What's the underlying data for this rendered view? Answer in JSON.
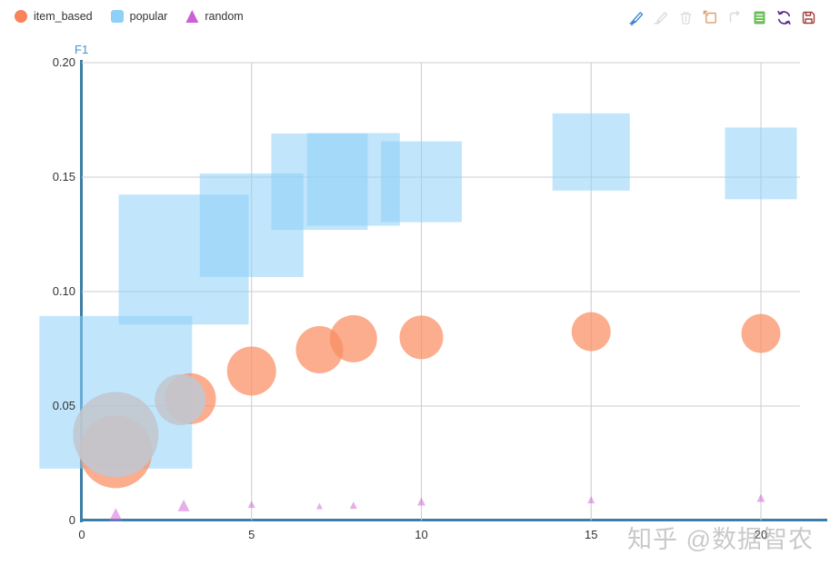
{
  "legend": {
    "items": [
      {
        "label": "item_based",
        "shape": "circle",
        "color": "#f8835a"
      },
      {
        "label": "popular",
        "shape": "square",
        "color": "#8ed0f8"
      },
      {
        "label": "random",
        "shape": "triangle",
        "color": "#cd5fd4"
      }
    ]
  },
  "toolbar": {
    "icons": [
      {
        "name": "brush-add-icon",
        "color": "#2f7fd1"
      },
      {
        "name": "brush-remove-icon",
        "color": "#d9d9d9"
      },
      {
        "name": "brush-clear-icon",
        "color": "#dcdcdc"
      },
      {
        "name": "zoom-select-icon",
        "color": "#dd9e6e"
      },
      {
        "name": "zoom-back-icon",
        "color": "#d9d9d9"
      },
      {
        "name": "data-view-icon",
        "color": "#6bbf59"
      },
      {
        "name": "restore-icon",
        "color": "#552d90"
      },
      {
        "name": "save-image-icon",
        "color": "#a03c3c"
      }
    ]
  },
  "axes": {
    "y_name": "F1",
    "y_ticks": [
      "0.20",
      "0.15",
      "0.10",
      "0.05",
      "0"
    ],
    "x_ticks": [
      "0",
      "5",
      "10",
      "15",
      "20"
    ],
    "axis_color": "#3d7ea8",
    "grid_color": "#cccccc"
  },
  "watermark": "知乎 @数据智农",
  "chart_data": {
    "type": "scatter",
    "title": "",
    "xlabel": "",
    "ylabel": "F1",
    "xlim": [
      0,
      22
    ],
    "ylim": [
      0,
      0.2
    ],
    "grid": true,
    "legend_position": "top-left",
    "x_gridlines": [
      5,
      10,
      15,
      20
    ],
    "y_gridlines": [
      0.05,
      0.1,
      0.15,
      0.2
    ],
    "series": [
      {
        "name": "popular",
        "symbol": "square",
        "color": "#8ed0f8",
        "opacity": 0.55,
        "points": [
          {
            "x": 1,
            "y": 0.056,
            "size": 168
          },
          {
            "x": 3,
            "y": 0.114,
            "size": 143
          },
          {
            "x": 5,
            "y": 0.129,
            "size": 114
          },
          {
            "x": 7,
            "y": 0.148,
            "size": 106
          },
          {
            "x": 8,
            "y": 0.149,
            "size": 102
          },
          {
            "x": 10,
            "y": 0.148,
            "size": 89
          },
          {
            "x": 15,
            "y": 0.161,
            "size": 85
          },
          {
            "x": 20,
            "y": 0.156,
            "size": 79
          }
        ]
      },
      {
        "name": "item_based",
        "symbol": "circle",
        "color": "#f98d63",
        "opacity": 0.72,
        "points": [
          {
            "x": 1,
            "y": 0.03,
            "size": 80
          },
          {
            "x": 3.2,
            "y": 0.0532,
            "size": 56
          },
          {
            "x": 5,
            "y": 0.0653,
            "size": 54
          },
          {
            "x": 7,
            "y": 0.0746,
            "size": 52
          },
          {
            "x": 8,
            "y": 0.0794,
            "size": 52
          },
          {
            "x": 10,
            "y": 0.08,
            "size": 48
          },
          {
            "x": 15,
            "y": 0.0825,
            "size": 43
          },
          {
            "x": 20,
            "y": 0.0817,
            "size": 43
          }
        ]
      },
      {
        "name": "item_based_dimmed",
        "symbol": "circle",
        "color": "#c2c6cf",
        "opacity": 0.9,
        "points": [
          {
            "x": 1,
            "y": 0.0375,
            "size": 94
          },
          {
            "x": 2.9,
            "y": 0.0528,
            "size": 56
          }
        ]
      },
      {
        "name": "random",
        "symbol": "triangle",
        "color": "#cd5fd4",
        "opacity": 0.5,
        "points": [
          {
            "x": 1,
            "y": 0.002,
            "size": 14
          },
          {
            "x": 3,
            "y": 0.006,
            "size": 13
          },
          {
            "x": 5,
            "y": 0.0067,
            "size": 8
          },
          {
            "x": 7,
            "y": 0.006,
            "size": 7
          },
          {
            "x": 8,
            "y": 0.0063,
            "size": 8
          },
          {
            "x": 10,
            "y": 0.0079,
            "size": 9
          },
          {
            "x": 15,
            "y": 0.0087,
            "size": 8
          },
          {
            "x": 20,
            "y": 0.0095,
            "size": 9
          }
        ]
      }
    ]
  }
}
